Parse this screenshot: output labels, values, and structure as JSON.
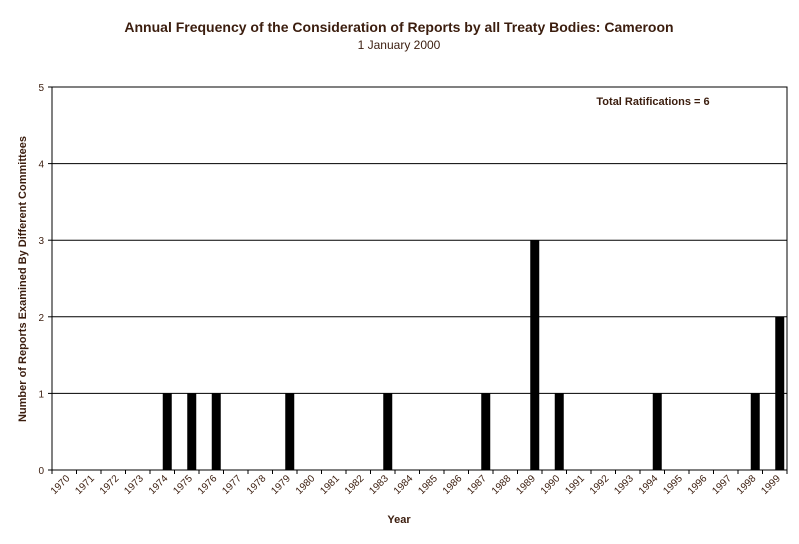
{
  "chart_data": {
    "type": "bar",
    "title": "Annual Frequency of the Consideration of Reports by all Treaty Bodies: Cameroon",
    "subtitle": "1 January 2000",
    "xlabel": "Year",
    "ylabel": "Number of Reports Examined By Different Committees",
    "ylim": [
      0,
      5
    ],
    "yticks": [
      "0",
      "1",
      "2",
      "3",
      "4",
      "5"
    ],
    "grid": true,
    "annotation": "Total Ratifications = 6",
    "categories": [
      "1970",
      "1971",
      "1972",
      "1973",
      "1974",
      "1975",
      "1976",
      "1977",
      "1978",
      "1979",
      "1980",
      "1981",
      "1982",
      "1983",
      "1984",
      "1985",
      "1986",
      "1987",
      "1988",
      "1989",
      "1990",
      "1991",
      "1992",
      "1993",
      "1994",
      "1995",
      "1996",
      "1997",
      "1998",
      "1999"
    ],
    "x_tick_labels": [
      "1970",
      "1971",
      "1972",
      "1973",
      "1974",
      "1975",
      "1976",
      "1977",
      "1978",
      "1979",
      "1980",
      "1981",
      "1982",
      "1983",
      "1984",
      "1985",
      "1986",
      "1987",
      "1988",
      "1989",
      "1990",
      "1991",
      "1992",
      "1993",
      "1994",
      "1995",
      "1996",
      "1997",
      "1998",
      "1999"
    ],
    "values": [
      0,
      0,
      0,
      0,
      1,
      1,
      1,
      0,
      0,
      1,
      0,
      0,
      0,
      1,
      0,
      0,
      0,
      1,
      0,
      3,
      1,
      0,
      0,
      0,
      1,
      0,
      0,
      0,
      1,
      2
    ],
    "colors": {
      "bar": "#000000",
      "text": "#3b1d0e",
      "grid": "#000000",
      "background": "#ffffff"
    }
  }
}
